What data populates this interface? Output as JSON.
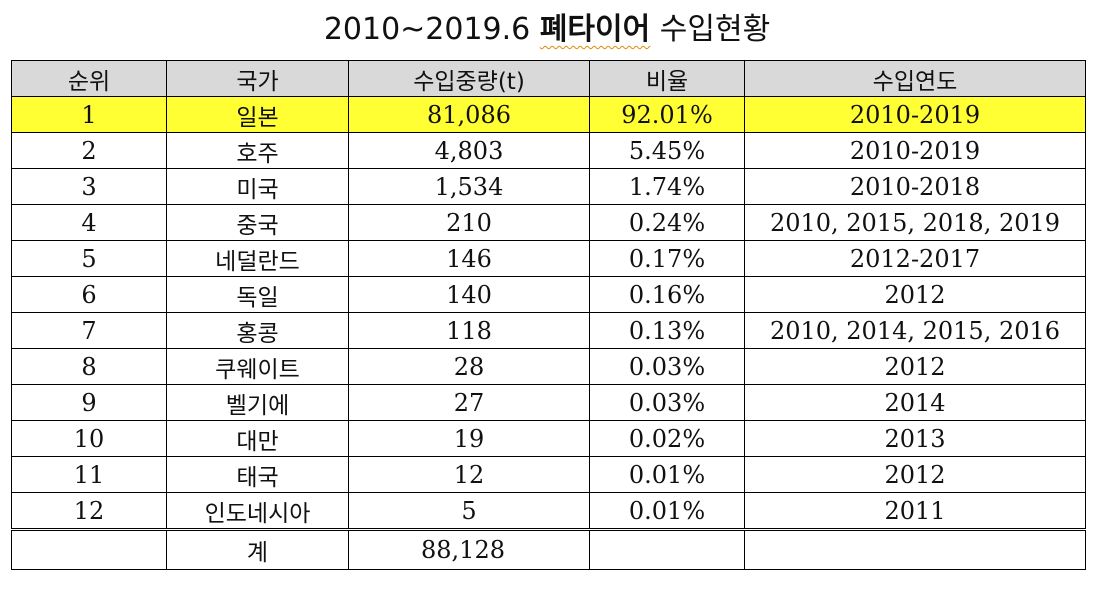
{
  "title": {
    "prefix": "2010~2019.6",
    "highlight": "폐타이어",
    "suffix": "수입현황"
  },
  "table": {
    "columns": [
      "순위",
      "국가",
      "수입중량(t)",
      "비율",
      "수입연도"
    ],
    "rows": [
      [
        "1",
        "일본",
        "81,086",
        "92.01%",
        "2010-2019"
      ],
      [
        "2",
        "호주",
        "4,803",
        "5.45%",
        "2010-2019"
      ],
      [
        "3",
        "미국",
        "1,534",
        "1.74%",
        "2010-2018"
      ],
      [
        "4",
        "중국",
        "210",
        "0.24%",
        "2010, 2015, 2018, 2019"
      ],
      [
        "5",
        "네덜란드",
        "146",
        "0.17%",
        "2012-2017"
      ],
      [
        "6",
        "독일",
        "140",
        "0.16%",
        "2012"
      ],
      [
        "7",
        "홍콩",
        "118",
        "0.13%",
        "2010, 2014, 2015, 2016"
      ],
      [
        "8",
        "쿠웨이트",
        "28",
        "0.03%",
        "2012"
      ],
      [
        "9",
        "벨기에",
        "27",
        "0.03%",
        "2014"
      ],
      [
        "10",
        "대만",
        "19",
        "0.02%",
        "2013"
      ],
      [
        "11",
        "태국",
        "12",
        "0.01%",
        "2012"
      ],
      [
        "12",
        "인도네시아",
        "5",
        "0.01%",
        "2011"
      ]
    ],
    "total": {
      "label": "계",
      "weight": "88,128"
    }
  },
  "colors": {
    "highlight_row": "#ffff33",
    "header_bg": "#d9d9d9"
  }
}
